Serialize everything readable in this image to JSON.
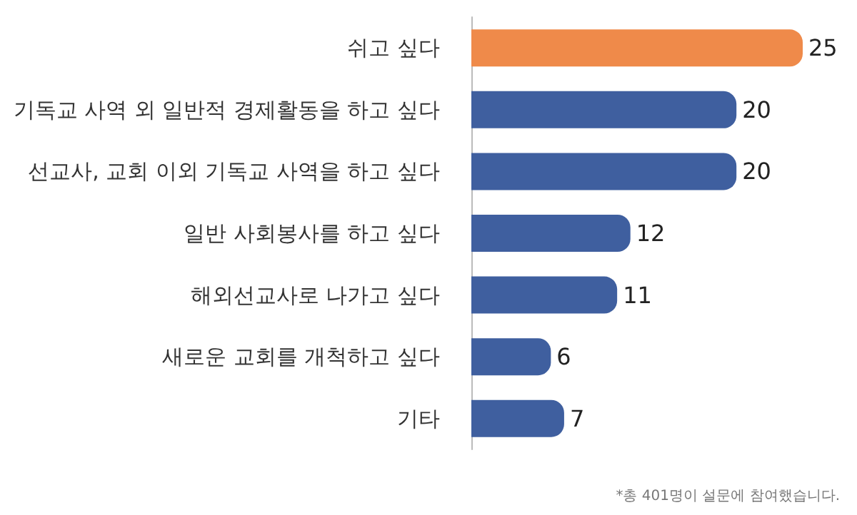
{
  "chart_data": {
    "type": "bar",
    "orientation": "horizontal",
    "categories": [
      "쉬고 싶다",
      "기독교 사역 외 일반적 경제활동을 하고 싶다",
      "선교사, 교회 이외 기독교 사역을 하고 싶다",
      "일반 사회봉사를 하고 싶다",
      "해외선교사로 나가고 싶다",
      "새로운 교회를 개척하고 싶다",
      "기타"
    ],
    "values": [
      25,
      20,
      20,
      12,
      11,
      6,
      7
    ],
    "colors": [
      "#ef8a4a",
      "#3f5f9f",
      "#3f5f9f",
      "#3f5f9f",
      "#3f5f9f",
      "#3f5f9f",
      "#3f5f9f"
    ],
    "data_labels": true,
    "annotations": [
      "*총 401명이 설문에 참여했습니다."
    ]
  }
}
